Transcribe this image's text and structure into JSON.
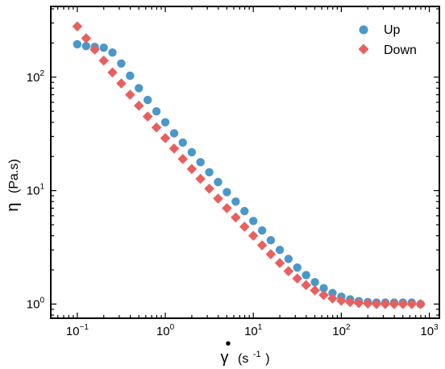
{
  "chart_data": {
    "type": "scatter",
    "xscale": "log",
    "yscale": "log",
    "xlim": [
      0.05,
      1300
    ],
    "ylim": [
      0.75,
      420
    ],
    "xticks": [
      {
        "value": 0.1,
        "base": "10",
        "exp": "−1"
      },
      {
        "value": 1,
        "base": "10",
        "exp": "0"
      },
      {
        "value": 10,
        "base": "10",
        "exp": "1"
      },
      {
        "value": 100,
        "base": "10",
        "exp": "2"
      },
      {
        "value": 1000,
        "base": "10",
        "exp": "3"
      }
    ],
    "yticks": [
      {
        "value": 1,
        "base": "10",
        "exp": "0"
      },
      {
        "value": 10,
        "base": "10",
        "exp": "1"
      },
      {
        "value": 100,
        "base": "10",
        "exp": "2"
      }
    ],
    "xlabel": {
      "symbol": "γ",
      "dot": "•",
      "unit_open": "(s",
      "unit_exp": "-1",
      "unit_close": ")"
    },
    "ylabel": {
      "symbol": "η",
      "unit": "(Pa.s)"
    },
    "legend": "top-right",
    "grid": false,
    "series": [
      {
        "name": "Up",
        "marker": "circle",
        "color": "#4a98c9",
        "x": [
          0.1,
          0.126,
          0.158,
          0.2,
          0.251,
          0.316,
          0.398,
          0.501,
          0.631,
          0.794,
          1.0,
          1.26,
          1.58,
          2.0,
          2.51,
          3.16,
          3.98,
          5.01,
          6.31,
          7.94,
          10.0,
          12.6,
          15.8,
          20.0,
          25.1,
          31.6,
          39.8,
          50.1,
          63.1,
          79.4,
          100,
          126,
          158,
          200,
          251,
          316,
          398,
          501,
          631,
          794
        ],
        "y": [
          195,
          188,
          185,
          182,
          165,
          132,
          103,
          80,
          63,
          50,
          40,
          32,
          26.5,
          21.8,
          17.8,
          14.5,
          11.9,
          9.7,
          8.0,
          6.6,
          5.4,
          4.45,
          3.65,
          3.0,
          2.5,
          2.1,
          1.8,
          1.56,
          1.38,
          1.25,
          1.16,
          1.1,
          1.06,
          1.04,
          1.03,
          1.03,
          1.03,
          1.03,
          1.03,
          1.0
        ]
      },
      {
        "name": "Down",
        "marker": "diamond",
        "color": "#e8605e",
        "x": [
          0.1,
          0.126,
          0.158,
          0.2,
          0.251,
          0.316,
          0.398,
          0.501,
          0.631,
          0.794,
          1.0,
          1.26,
          1.58,
          2.0,
          2.51,
          3.16,
          3.98,
          5.01,
          6.31,
          7.94,
          10.0,
          12.6,
          15.8,
          20.0,
          25.1,
          31.6,
          39.8,
          50.1,
          63.1,
          79.4,
          100,
          126,
          158,
          200,
          251,
          316,
          398,
          501,
          631,
          794
        ],
        "y": [
          280,
          220,
          175,
          140,
          110,
          88,
          70,
          56,
          45,
          36,
          29,
          23.5,
          19,
          15.5,
          12.7,
          10.4,
          8.5,
          7.0,
          5.8,
          4.8,
          4.0,
          3.3,
          2.75,
          2.3,
          1.95,
          1.68,
          1.47,
          1.32,
          1.2,
          1.12,
          1.07,
          1.04,
          1.02,
          1.01,
          1.0,
          1.0,
          1.0,
          1.0,
          1.0,
          1.0
        ]
      }
    ]
  }
}
